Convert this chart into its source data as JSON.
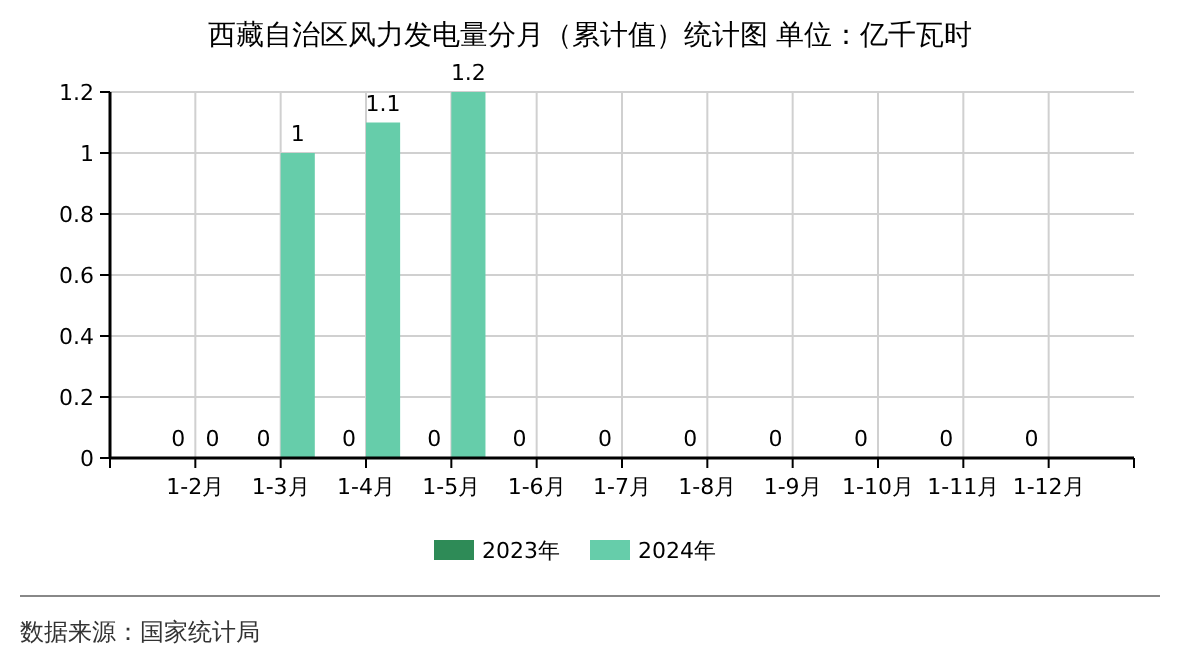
{
  "chart_data": {
    "type": "bar",
    "title": "西藏自治区风力发电量分月（累计值）统计图 单位：亿千瓦时",
    "categories": [
      "1-2月",
      "1-3月",
      "1-4月",
      "1-5月",
      "1-6月",
      "1-7月",
      "1-8月",
      "1-9月",
      "1-10月",
      "1-11月",
      "1-12月"
    ],
    "series": [
      {
        "name": "2023年",
        "color": "#2e8b57",
        "values": [
          0,
          0,
          0,
          0,
          0,
          0,
          0,
          0,
          0,
          0,
          0
        ]
      },
      {
        "name": "2024年",
        "color": "#66cdaa",
        "values": [
          0,
          1,
          1.1,
          1.2,
          null,
          null,
          null,
          null,
          null,
          null,
          null
        ]
      }
    ],
    "ylim": [
      0,
      1.2
    ],
    "yticks": [
      0,
      0.2,
      0.4,
      0.6,
      0.8,
      1,
      1.2
    ],
    "grid": true,
    "legend": "bottom",
    "data_labels": true,
    "annotations": [
      "数据来源：国家统计局"
    ]
  }
}
